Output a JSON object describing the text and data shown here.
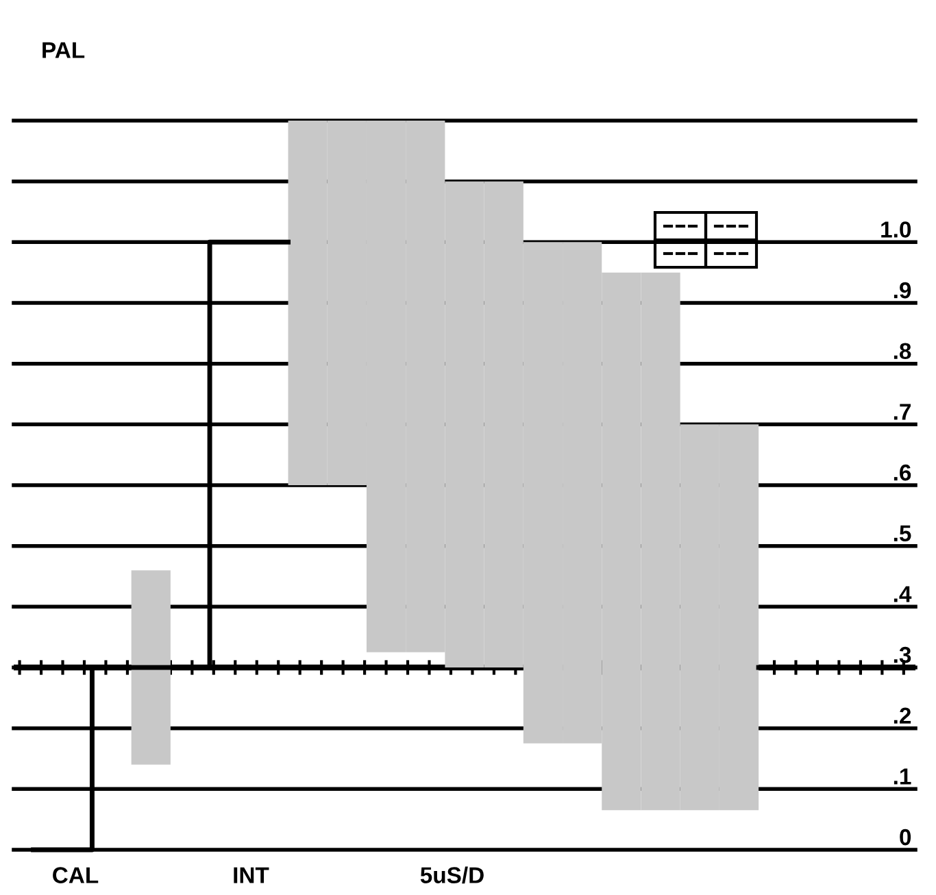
{
  "chart_data": {
    "type": "bar",
    "title": "PAL",
    "categories": [
      null,
      null,
      null,
      null,
      null,
      null,
      null,
      null,
      null,
      null,
      null,
      null,
      null,
      null,
      null,
      null,
      null,
      null,
      null,
      null,
      null,
      null,
      null
    ],
    "series": [
      {
        "color": "#c8c8c8",
        "base": [
          null,
          null,
          null,
          0.14,
          null,
          null,
          null,
          0.6,
          0.6,
          0.325,
          0.325,
          0.3,
          0.3,
          0.175,
          0.175,
          0.065,
          0.065,
          0.065,
          0.065,
          null,
          null,
          null,
          null
        ],
        "values": [
          null,
          null,
          null,
          0.32,
          null,
          null,
          null,
          0.6,
          0.6,
          0.875,
          0.875,
          0.8,
          0.8,
          0.825,
          0.825,
          0.885,
          0.885,
          0.635,
          0.635,
          null,
          null,
          null,
          null
        ]
      },
      {
        "type": "step",
        "color": "#000000",
        "values": [
          0,
          0,
          0.3,
          0.3,
          0.3,
          1.0,
          1.0,
          null,
          null,
          null,
          null,
          null,
          null,
          null,
          null,
          null,
          null,
          null,
          null,
          0.3,
          0.3,
          0.3,
          0.3
        ]
      }
    ],
    "ylim": [
      0,
      1.2
    ],
    "yticks": [
      0,
      {
        "value": 0.1,
        "label": ".1"
      },
      {
        "value": 0.2,
        "label": ".2"
      },
      {
        "value": 0.3,
        "label": ".3"
      },
      {
        "value": 0.4,
        "label": ".4"
      },
      {
        "value": 0.5,
        "label": ".5"
      },
      {
        "value": 0.6,
        "label": ".6"
      },
      {
        "value": 0.7,
        "label": ".7"
      },
      {
        "value": 0.8,
        "label": ".8"
      },
      {
        "value": 0.9,
        "label": ".9"
      },
      {
        "value": 1.0,
        "label": "1.0"
      },
      {
        "value": 1.1,
        "label": null
      },
      {
        "value": 1.2,
        "label": null
      }
    ],
    "ref_lines": [
      {
        "axis": "y",
        "value": 0.3,
        "color": "#000000"
      }
    ],
    "grid": "y",
    "tick_labels": "y",
    "annotations": [
      "CAL",
      "INT",
      "5uS/D"
    ]
  }
}
